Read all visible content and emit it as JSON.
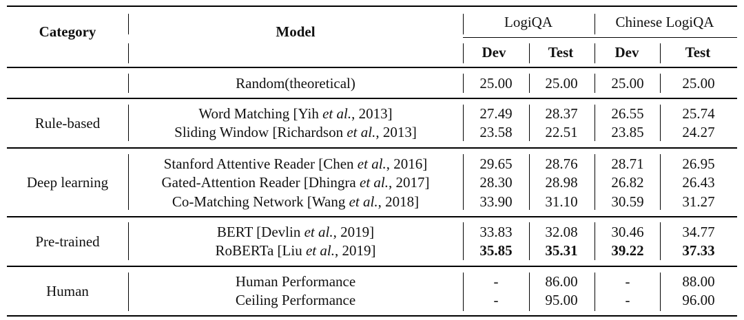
{
  "header": {
    "category": "Category",
    "model": "Model",
    "group1": "LogiQA",
    "group2": "Chinese LogiQA",
    "cols": [
      "Dev",
      "Test",
      "Dev",
      "Test"
    ]
  },
  "groups": [
    {
      "category": "",
      "rows": [
        {
          "model": "Random(theoretical)",
          "values": [
            "25.00",
            "25.00",
            "25.00",
            "25.00"
          ]
        }
      ]
    },
    {
      "category": "Rule-based",
      "rows": [
        {
          "model_prefix": "Word Matching [Yih ",
          "model_italic": "et al.",
          "model_suffix": ", 2013]",
          "values": [
            "27.49",
            "28.37",
            "26.55",
            "25.74"
          ]
        },
        {
          "model_prefix": "Sliding Window [Richardson ",
          "model_italic": "et al.",
          "model_suffix": ", 2013]",
          "values": [
            "23.58",
            "22.51",
            "23.85",
            "24.27"
          ]
        }
      ]
    },
    {
      "category": "Deep learning",
      "rows": [
        {
          "model_prefix": "Stanford Attentive Reader [Chen ",
          "model_italic": "et al.",
          "model_suffix": ", 2016]",
          "values": [
            "29.65",
            "28.76",
            "28.71",
            "26.95"
          ]
        },
        {
          "model_prefix": "Gated-Attention Reader [Dhingra ",
          "model_italic": "et al.",
          "model_suffix": ", 2017]",
          "values": [
            "28.30",
            "28.98",
            "26.82",
            "26.43"
          ]
        },
        {
          "model_prefix": "Co-Matching Network [Wang ",
          "model_italic": "et al.",
          "model_suffix": ", 2018]",
          "values": [
            "33.90",
            "31.10",
            "30.59",
            "31.27"
          ]
        }
      ]
    },
    {
      "category": "Pre-trained",
      "rows": [
        {
          "model_prefix": "BERT [Devlin ",
          "model_italic": "et al.",
          "model_suffix": ", 2019]",
          "values": [
            "33.83",
            "32.08",
            "30.46",
            "34.77"
          ]
        },
        {
          "model_prefix": "RoBERTa [Liu ",
          "model_italic": "et al.",
          "model_suffix": ", 2019]",
          "values": [
            "35.85",
            "35.31",
            "39.22",
            "37.33"
          ],
          "bold": true
        }
      ]
    },
    {
      "category": "Human",
      "rows": [
        {
          "model": "Human Performance",
          "values": [
            "-",
            "86.00",
            "-",
            "88.00"
          ]
        },
        {
          "model": "Ceiling Performance",
          "values": [
            "-",
            "95.00",
            "-",
            "96.00"
          ]
        }
      ]
    }
  ]
}
